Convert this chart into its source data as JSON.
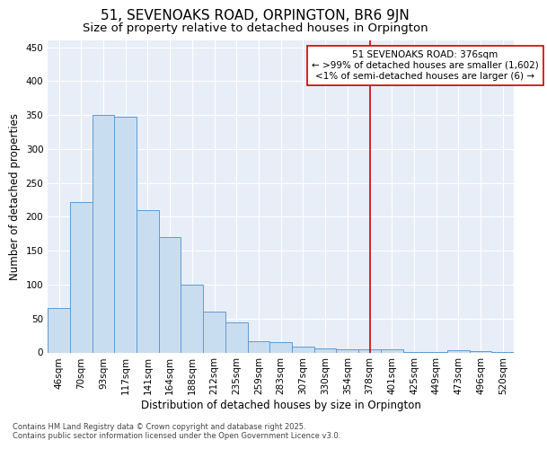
{
  "title": "51, SEVENOAKS ROAD, ORPINGTON, BR6 9JN",
  "subtitle": "Size of property relative to detached houses in Orpington",
  "xlabel": "Distribution of detached houses by size in Orpington",
  "ylabel": "Number of detached properties",
  "categories": [
    "46sqm",
    "70sqm",
    "93sqm",
    "117sqm",
    "141sqm",
    "164sqm",
    "188sqm",
    "212sqm",
    "235sqm",
    "259sqm",
    "283sqm",
    "307sqm",
    "330sqm",
    "354sqm",
    "378sqm",
    "401sqm",
    "425sqm",
    "449sqm",
    "473sqm",
    "496sqm",
    "520sqm"
  ],
  "bar_values": [
    65,
    222,
    350,
    348,
    210,
    170,
    100,
    60,
    44,
    17,
    15,
    8,
    6,
    5,
    5,
    4,
    1,
    1,
    3,
    2,
    1
  ],
  "bar_color": "#c9ddf0",
  "bar_edge_color": "#5b9bd5",
  "vline_x": 14,
  "vline_color": "#cc0000",
  "annotation_text": "51 SEVENOAKS ROAD: 376sqm\n← >99% of detached houses are smaller (1,602)\n<1% of semi-detached houses are larger (6) →",
  "annotation_box_color": "#cc0000",
  "ylim": [
    0,
    460
  ],
  "yticks": [
    0,
    50,
    100,
    150,
    200,
    250,
    300,
    350,
    400,
    450
  ],
  "background_color": "#e8eef7",
  "footer_text": "Contains HM Land Registry data © Crown copyright and database right 2025.\nContains public sector information licensed under the Open Government Licence v3.0.",
  "title_fontsize": 11,
  "subtitle_fontsize": 9.5,
  "axis_label_fontsize": 8.5,
  "tick_fontsize": 7.5,
  "annotation_fontsize": 7.5,
  "footer_fontsize": 6
}
